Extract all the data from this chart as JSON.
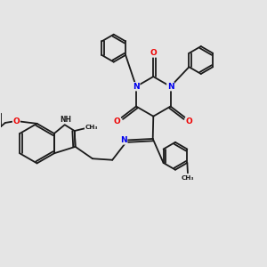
{
  "bg_color": "#e5e5e5",
  "bond_color": "#1a1a1a",
  "N_color": "#0000ee",
  "O_color": "#ee0000",
  "lw": 1.3,
  "dbo": 0.008,
  "fs": 6.5,
  "fig_w": 3.0,
  "fig_h": 3.0,
  "dpi": 100,
  "xlim": [
    0,
    1
  ],
  "ylim": [
    0,
    1
  ]
}
